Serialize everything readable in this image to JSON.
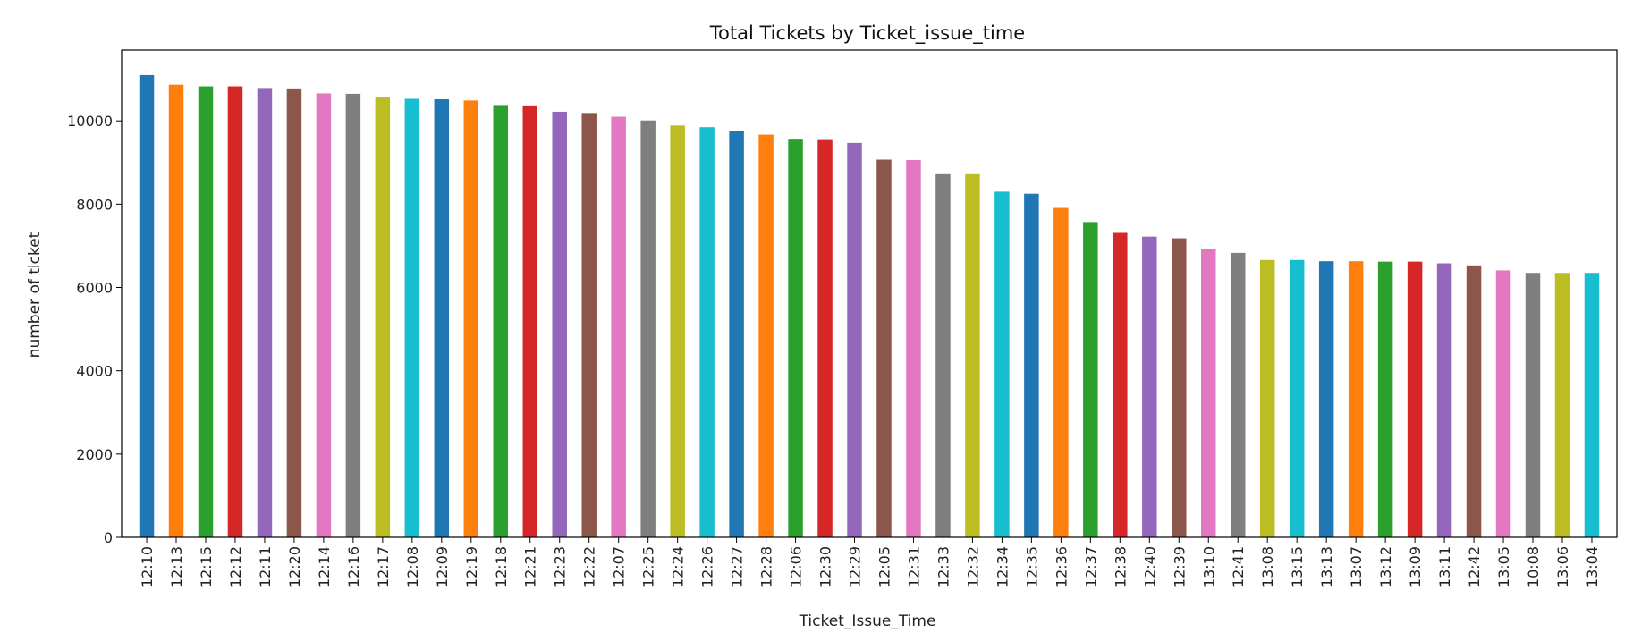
{
  "chart_data": {
    "type": "bar",
    "title": "Total Tickets by Ticket_issue_time",
    "xlabel": "Ticket_Issue_Time",
    "ylabel": "number of ticket",
    "ylim": [
      0,
      11700
    ],
    "yticks": [
      0,
      2000,
      4000,
      6000,
      8000,
      10000
    ],
    "grid": false,
    "legend": "none",
    "categories": [
      "12:10",
      "12:13",
      "12:15",
      "12:12",
      "12:11",
      "12:20",
      "12:14",
      "12:16",
      "12:17",
      "12:08",
      "12:09",
      "12:19",
      "12:18",
      "12:21",
      "12:23",
      "12:22",
      "12:07",
      "12:25",
      "12:24",
      "12:26",
      "12:27",
      "12:28",
      "12:06",
      "12:30",
      "12:29",
      "12:05",
      "12:31",
      "12:33",
      "12:32",
      "12:34",
      "12:35",
      "12:36",
      "12:37",
      "12:38",
      "12:40",
      "12:39",
      "13:10",
      "12:41",
      "13:08",
      "13:15",
      "13:13",
      "13:07",
      "13:12",
      "13:09",
      "13:11",
      "12:42",
      "13:05",
      "10:08",
      "13:06",
      "13:04"
    ],
    "values": [
      11100,
      10870,
      10830,
      10830,
      10790,
      10780,
      10660,
      10650,
      10560,
      10530,
      10520,
      10490,
      10360,
      10350,
      10220,
      10190,
      10100,
      10010,
      9890,
      9850,
      9760,
      9670,
      9550,
      9540,
      9470,
      9070,
      9060,
      8720,
      8720,
      8300,
      8250,
      7910,
      7570,
      7310,
      7220,
      7180,
      6920,
      6830,
      6660,
      6660,
      6630,
      6630,
      6620,
      6620,
      6580,
      6530,
      6410,
      6350,
      6350,
      6350
    ],
    "colors": [
      "#1f77b4",
      "#ff7f0e",
      "#2ca02c",
      "#d62728",
      "#9467bd",
      "#8c564b",
      "#e377c2",
      "#7f7f7f",
      "#bcbd22",
      "#17becf"
    ]
  }
}
